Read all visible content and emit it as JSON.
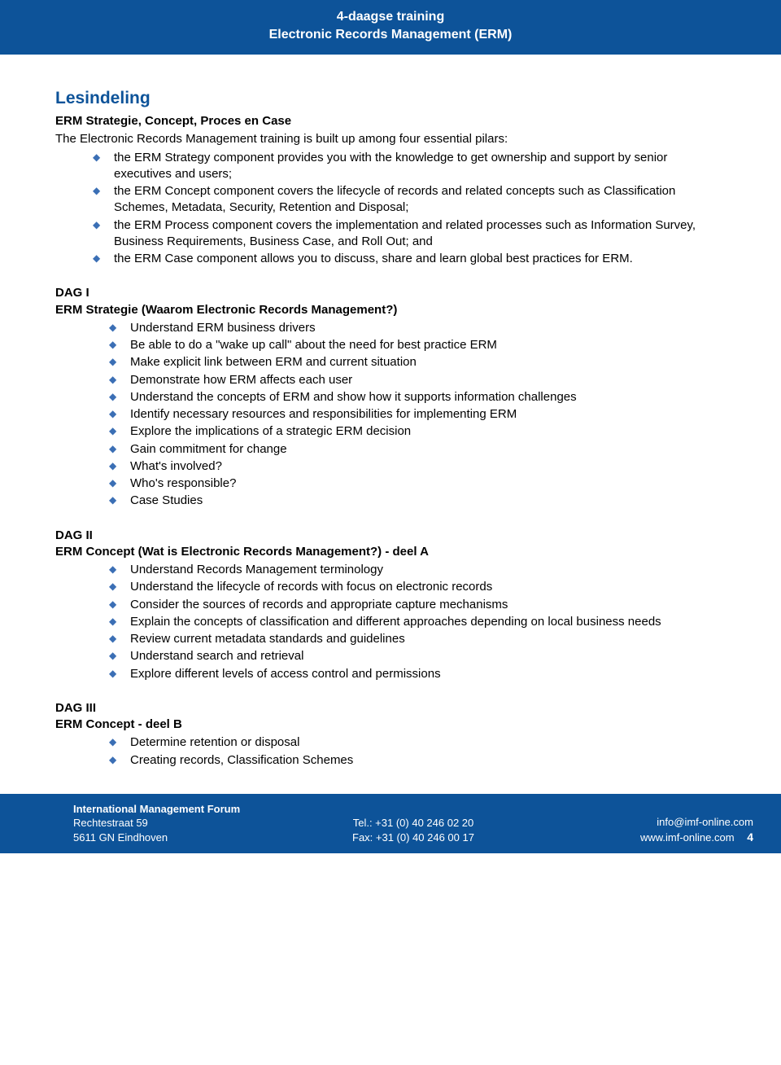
{
  "colors": {
    "brand_blue": "#0d5399",
    "bullet_blue": "#3b6fb5",
    "text": "#000000",
    "background": "#ffffff"
  },
  "typography": {
    "body_font": "Arial",
    "body_size_pt": 11,
    "header_size_pt": 12,
    "section_title_size_pt": 16
  },
  "header": {
    "line1": "4-daagse training",
    "line2": "Electronic Records Management (ERM)"
  },
  "main": {
    "title": "Lesindeling",
    "subtitle": "ERM Strategie, Concept, Proces en Case",
    "intro": "The Electronic Records Management training is built up among four essential pilars:",
    "pilars": [
      "the ERM Strategy component provides you with the knowledge to get ownership and support by senior executives and users;",
      "the ERM Concept component covers the lifecycle of records and related concepts such as Classification Schemes, Metadata, Security, Retention and Disposal;",
      "the ERM Process component covers the implementation and related processes such as Information Survey, Business Requirements, Business Case, and Roll Out; and",
      "the ERM Case component allows you to discuss, share and learn global best practices for ERM."
    ],
    "days": [
      {
        "label": "DAG I",
        "subtitle": "ERM Strategie (Waarom Electronic Records Management?)",
        "items": [
          "Understand ERM business drivers",
          "Be able to do a \"wake up call\" about the need for best practice ERM",
          "Make explicit link between ERM and current situation",
          "Demonstrate how ERM affects each user",
          "Understand the concepts of ERM and show how it supports information challenges",
          "Identify necessary resources and responsibilities for implementing ERM",
          "Explore the implications of a strategic ERM decision",
          "Gain commitment for change",
          "What's involved?",
          "Who's responsible?",
          "Case Studies"
        ]
      },
      {
        "label": "DAG II",
        "subtitle": "ERM Concept (Wat is Electronic Records Management?) - deel A",
        "items": [
          "Understand Records Management terminology",
          "Understand the lifecycle of records with focus on electronic records",
          "Consider the sources of records and appropriate capture mechanisms",
          "Explain the concepts of classification and different approaches depending on local business needs",
          "Review current metadata standards and guidelines",
          "Understand search and retrieval",
          "Explore different levels of access control and permissions"
        ]
      },
      {
        "label": "DAG III",
        "subtitle": "ERM Concept - deel B",
        "items": [
          "Determine retention or disposal",
          "Creating records, Classification Schemes"
        ]
      }
    ]
  },
  "footer": {
    "org": "International Management Forum",
    "addr1": "Rechtestraat 59",
    "addr2": "5611 GN Eindhoven",
    "tel": "Tel.: +31 (0) 40 246 02 20",
    "fax": "Fax: +31 (0) 40 246 00 17",
    "email": "info@imf-online.com",
    "web": "www.imf-online.com",
    "page": "4"
  }
}
